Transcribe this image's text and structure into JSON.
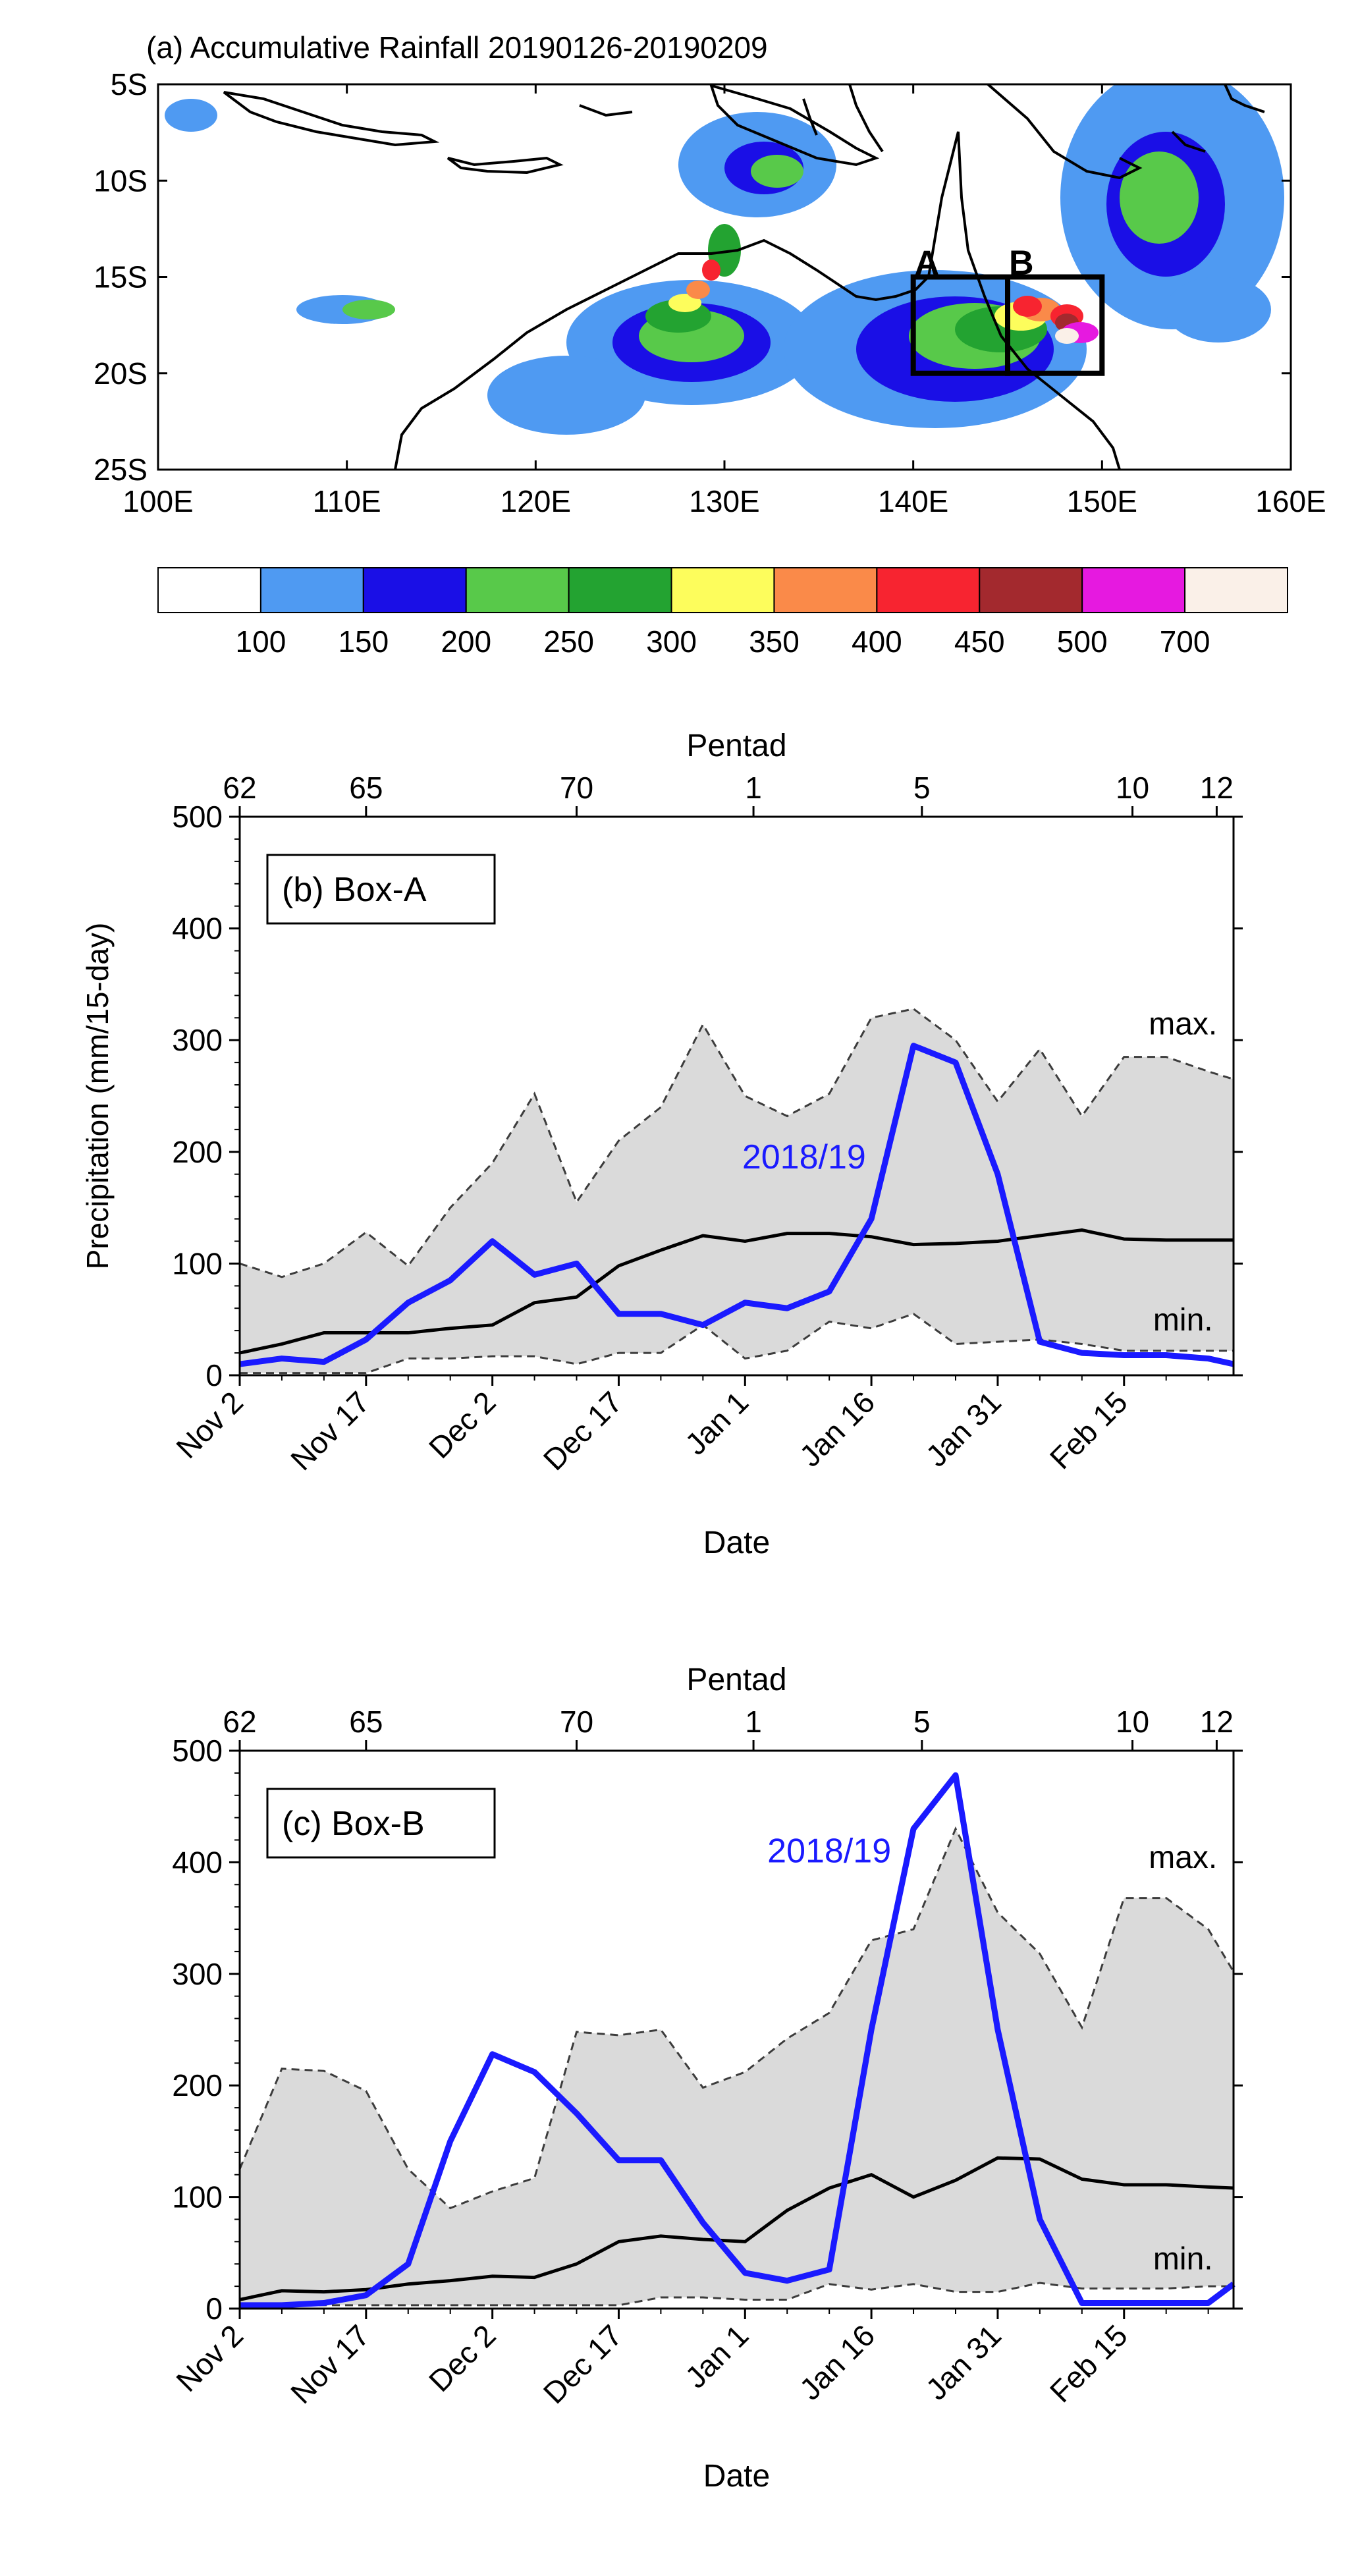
{
  "panel_a": {
    "title": "(a) Accumulative Rainfall 20190126-20190209",
    "lon_ticks": [
      "100E",
      "110E",
      "120E",
      "130E",
      "140E",
      "150E",
      "160E"
    ],
    "lat_ticks": [
      "5S",
      "10S",
      "15S",
      "20S",
      "25S"
    ],
    "lon_range": [
      100,
      160
    ],
    "lat_range": [
      -25,
      -5
    ],
    "box_a_label": "A",
    "box_b_label": "B",
    "box_a": {
      "lon": [
        140,
        145
      ],
      "lat": [
        -20,
        -15
      ]
    },
    "box_b": {
      "lon": [
        145,
        150
      ],
      "lat": [
        -20,
        -15
      ]
    },
    "colorbar": {
      "labels": [
        "100",
        "150",
        "200",
        "250",
        "300",
        "350",
        "400",
        "450",
        "500",
        "700"
      ],
      "colors": [
        "#ffffff",
        "#4f9af2",
        "#1a0fe6",
        "#58c94a",
        "#23a331",
        "#fdfd5c",
        "#fa8a49",
        "#f72430",
        "#a3292e",
        "#e619e0",
        "#faf0e8"
      ]
    }
  },
  "chart_data": [
    {
      "type": "line",
      "panel_label": "(b) Box-A",
      "xlabel": "Date",
      "ylabel": "Precipitation (mm/15-day)",
      "top_axis_label": "Pentad",
      "ylim": [
        0,
        500
      ],
      "yticks": [
        "0",
        "100",
        "200",
        "300",
        "400",
        "500"
      ],
      "x_tick_labels": [
        "Nov 2",
        "Nov 17",
        "Dec 2",
        "Dec 17",
        "Jan 1",
        "Jan 16",
        "Jan 31",
        "Feb 15"
      ],
      "x_tick_days": [
        0,
        15,
        30,
        45,
        60,
        75,
        90,
        105
      ],
      "pentad_labels": [
        "62",
        "65",
        "70",
        "1",
        "5",
        "10",
        "12"
      ],
      "pentad_days": [
        0,
        15,
        40,
        61,
        81,
        106,
        116
      ],
      "x_range": [
        0,
        118
      ],
      "x_days": [
        0,
        5,
        10,
        15,
        20,
        25,
        30,
        35,
        40,
        45,
        50,
        55,
        60,
        65,
        70,
        75,
        80,
        85,
        90,
        95,
        100,
        105,
        110,
        115,
        118
      ],
      "series": [
        {
          "name": "2018/19",
          "values": [
            10,
            15,
            12,
            32,
            65,
            85,
            120,
            90,
            100,
            55,
            55,
            45,
            65,
            60,
            75,
            140,
            295,
            280,
            180,
            30,
            20,
            18,
            18,
            15,
            10
          ]
        },
        {
          "name": "mean",
          "values": [
            20,
            28,
            38,
            38,
            38,
            42,
            45,
            65,
            70,
            98,
            112,
            125,
            120,
            127,
            127,
            124,
            117,
            118,
            120,
            125,
            130,
            122,
            121,
            121,
            121
          ]
        },
        {
          "name": "max.",
          "values": [
            100,
            88,
            100,
            128,
            98,
            150,
            190,
            252,
            155,
            210,
            240,
            314,
            250,
            232,
            252,
            320,
            328,
            300,
            245,
            292,
            232,
            285,
            285,
            272,
            265
          ]
        },
        {
          "name": "min.",
          "values": [
            2,
            2,
            2,
            2,
            15,
            15,
            17,
            17,
            10,
            20,
            20,
            45,
            15,
            22,
            48,
            42,
            55,
            28,
            30,
            32,
            28,
            22,
            22,
            22,
            22
          ]
        }
      ],
      "series_label": "2018/19",
      "max_label": "max.",
      "min_label": "min.",
      "colors": {
        "current": "#1a1aff",
        "mean": "#000000",
        "range_fill": "#dadada",
        "envelope": "#3c3c3c"
      }
    },
    {
      "type": "line",
      "panel_label": "(c) Box-B",
      "xlabel": "Date",
      "ylabel": "",
      "top_axis_label": "Pentad",
      "ylim": [
        0,
        500
      ],
      "yticks": [
        "0",
        "100",
        "200",
        "300",
        "400",
        "500"
      ],
      "x_tick_labels": [
        "Nov 2",
        "Nov 17",
        "Dec 2",
        "Dec 17",
        "Jan 1",
        "Jan 16",
        "Jan 31",
        "Feb 15"
      ],
      "x_tick_days": [
        0,
        15,
        30,
        45,
        60,
        75,
        90,
        105
      ],
      "pentad_labels": [
        "62",
        "65",
        "70",
        "1",
        "5",
        "10",
        "12"
      ],
      "pentad_days": [
        0,
        15,
        40,
        61,
        81,
        106,
        116
      ],
      "x_range": [
        0,
        118
      ],
      "x_days": [
        0,
        5,
        10,
        15,
        20,
        25,
        30,
        35,
        40,
        45,
        50,
        55,
        60,
        65,
        70,
        75,
        80,
        85,
        90,
        95,
        100,
        105,
        110,
        115,
        118
      ],
      "series": [
        {
          "name": "2018/19",
          "values": [
            3,
            3,
            5,
            12,
            40,
            150,
            228,
            212,
            175,
            133,
            133,
            77,
            32,
            25,
            35,
            250,
            430,
            478,
            250,
            80,
            5,
            5,
            5,
            5,
            22
          ]
        },
        {
          "name": "mean",
          "values": [
            8,
            16,
            15,
            17,
            22,
            25,
            29,
            28,
            40,
            60,
            65,
            62,
            60,
            88,
            108,
            120,
            100,
            115,
            135,
            134,
            116,
            111,
            111,
            109,
            108
          ]
        },
        {
          "name": "max.",
          "values": [
            125,
            215,
            213,
            195,
            125,
            90,
            105,
            117,
            248,
            245,
            250,
            198,
            212,
            242,
            265,
            330,
            340,
            430,
            355,
            318,
            252,
            368,
            368,
            340,
            302
          ]
        },
        {
          "name": "min.",
          "values": [
            3,
            3,
            3,
            3,
            3,
            3,
            3,
            3,
            3,
            3,
            10,
            10,
            8,
            8,
            22,
            17,
            22,
            15,
            15,
            23,
            18,
            18,
            18,
            20,
            20
          ]
        }
      ],
      "series_label": "2018/19",
      "max_label": "max.",
      "min_label": "min.",
      "colors": {
        "current": "#1a1aff",
        "mean": "#000000",
        "range_fill": "#dadada",
        "envelope": "#3c3c3c"
      }
    }
  ]
}
